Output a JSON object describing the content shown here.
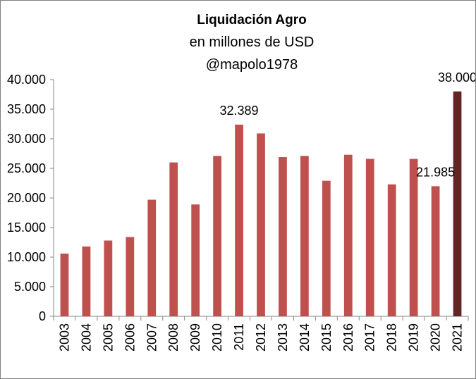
{
  "chart_data": {
    "type": "bar",
    "title": "Liquidación  Agro",
    "subtitle": "en millones de USD",
    "credit": "@mapolo1978",
    "xlabel": "",
    "ylabel": "",
    "ylim": [
      0,
      40000
    ],
    "y_ticks": [
      "0",
      "5.000",
      "10.000",
      "15.000",
      "20.000",
      "25.000",
      "30.000",
      "35.000",
      "40.000"
    ],
    "categories": [
      "2003",
      "2004",
      "2005",
      "2006",
      "2007",
      "2008",
      "2009",
      "2010",
      "2011",
      "2012",
      "2013",
      "2014",
      "2015",
      "2016",
      "2017",
      "2018",
      "2019",
      "2020",
      "2021"
    ],
    "values": [
      10600,
      11800,
      12800,
      13400,
      19700,
      26000,
      18900,
      27100,
      32389,
      30900,
      26900,
      27100,
      22900,
      27300,
      26600,
      22300,
      26600,
      21985,
      38000
    ],
    "data_labels": [
      {
        "category": "2011",
        "text": "32.389"
      },
      {
        "category": "2020",
        "text": "21.985"
      },
      {
        "category": "2021",
        "text": "38.000"
      }
    ],
    "colors": {
      "bar": "#c0504d",
      "highlight_bar": "#632523",
      "axis": "#868686"
    },
    "highlight_category": "2021",
    "grid": false,
    "legend": "none"
  }
}
